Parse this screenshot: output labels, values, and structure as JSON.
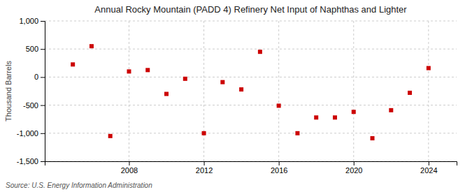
{
  "chart_data": {
    "type": "scatter",
    "title": "Annual Rocky Mountain (PADD 4) Refinery Net Input of Naphthas and Lighter",
    "ylabel": "Thousand Barrels",
    "source": "Source: U.S. Energy Information Administration",
    "x": [
      2005,
      2006,
      2007,
      2008,
      2009,
      2010,
      2011,
      2012,
      2013,
      2014,
      2015,
      2016,
      2017,
      2018,
      2019,
      2020,
      2021,
      2022,
      2023,
      2024
    ],
    "values": [
      225,
      550,
      -1050,
      100,
      125,
      -300,
      -30,
      -1000,
      -90,
      -220,
      450,
      -510,
      -1000,
      -720,
      -720,
      -620,
      -1090,
      -590,
      -280,
      160
    ],
    "color": "#cc0000",
    "marker": "square",
    "xlim": [
      2003.5,
      2025.5
    ],
    "xticks": [
      2008,
      2012,
      2016,
      2020,
      2024
    ],
    "ylim": [
      -1500,
      1000
    ],
    "yticks": [
      {
        "value": -1500,
        "label": "-1,500"
      },
      {
        "value": -1000,
        "label": "-1,000"
      },
      -500,
      0,
      500,
      {
        "value": 1000,
        "label": "1,000"
      }
    ],
    "grid": true
  }
}
